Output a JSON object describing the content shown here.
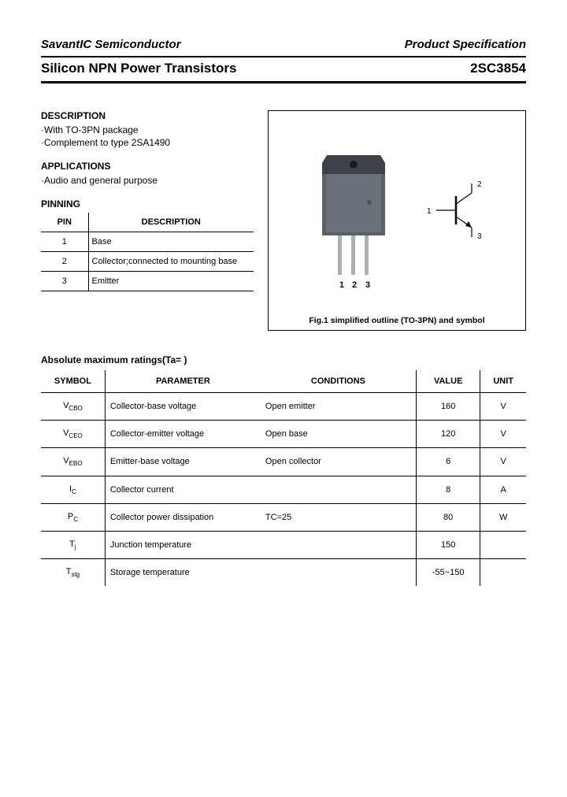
{
  "header": {
    "company": "SavantIC Semiconductor",
    "spec": "Product Specification",
    "subtitle": "Silicon NPN Power Transistors",
    "part": "2SC3854"
  },
  "description": {
    "heading": "DESCRIPTION",
    "line1": "·With TO-3PN package",
    "line2": "·Complement to type 2SA1490"
  },
  "applications": {
    "heading": "APPLICATIONS",
    "line1": "·Audio and general purpose"
  },
  "pinning": {
    "heading": "PINNING",
    "col_pin": "PIN",
    "col_desc": "DESCRIPTION",
    "rows": [
      {
        "pin": "1",
        "desc": "Base"
      },
      {
        "pin": "2",
        "desc": "Collector;connected to mounting base"
      },
      {
        "pin": "3",
        "desc": "Emitter"
      }
    ]
  },
  "figure": {
    "pin_labels": [
      "1",
      "2",
      "3"
    ],
    "sym_labels": [
      "1",
      "2",
      "3"
    ],
    "caption": "Fig.1 simplified outline (TO-3PN) and symbol"
  },
  "ratings": {
    "title": "Absolute maximum ratings(Ta=  )",
    "columns": {
      "symbol": "SYMBOL",
      "parameter": "PARAMETER",
      "conditions": "CONDITIONS",
      "value": "VALUE",
      "unit": "UNIT"
    },
    "rows": [
      {
        "sym_main": "V",
        "sym_sub": "CBO",
        "param": "Collector-base voltage",
        "cond": "Open emitter",
        "value": "160",
        "unit": "V"
      },
      {
        "sym_main": "V",
        "sym_sub": "CEO",
        "param": "Collector-emitter voltage",
        "cond": "Open base",
        "value": "120",
        "unit": "V"
      },
      {
        "sym_main": "V",
        "sym_sub": "EBO",
        "param": "Emitter-base voltage",
        "cond": "Open collector",
        "value": "6",
        "unit": "V"
      },
      {
        "sym_main": "I",
        "sym_sub": "C",
        "param": "Collector current",
        "cond": "",
        "value": "8",
        "unit": "A"
      },
      {
        "sym_main": "P",
        "sym_sub": "C",
        "param": "Collector power dissipation",
        "cond": "TC=25",
        "value": "80",
        "unit": "W"
      },
      {
        "sym_main": "T",
        "sym_sub": "j",
        "param": "Junction temperature",
        "cond": "",
        "value": "150",
        "unit": ""
      },
      {
        "sym_main": "T",
        "sym_sub": "stg",
        "param": "Storage temperature",
        "cond": "",
        "value": "-55~150",
        "unit": ""
      }
    ]
  },
  "colors": {
    "package_body": "#5a6268",
    "package_dark": "#3d4348",
    "lead": "#b0b0b0"
  }
}
